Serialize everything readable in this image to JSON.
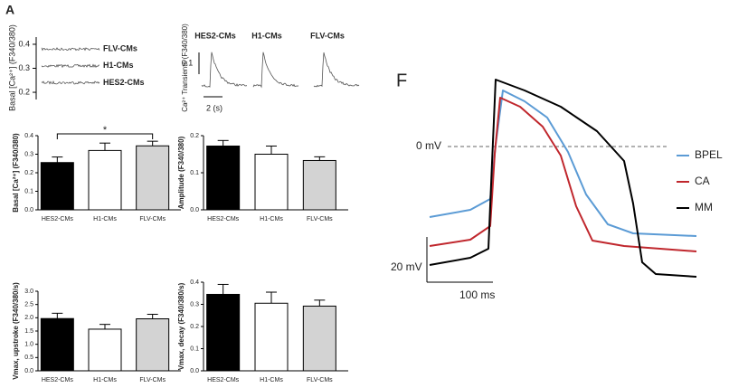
{
  "panel_a": {
    "label": "A",
    "basal_ylabel": "Basal [Ca²⁺] (F340/380)",
    "basal_ylim": [
      0.17,
      0.43
    ],
    "basal_yticks": [
      0.2,
      0.3,
      0.4
    ],
    "traces": [
      {
        "name": "FLV-CMs",
        "level": 0.38
      },
      {
        "name": "H1-CMs",
        "level": 0.31
      },
      {
        "name": "HES2-CMs",
        "level": 0.24
      }
    ],
    "transient_ylabel": "Ca²⁺ Transients (F340/380)",
    "transient_titles": [
      "HES2-CMs",
      "H1-CMs",
      "FLV-CMs"
    ],
    "scale_y": "0.1",
    "scale_x": "2 (s)"
  },
  "chart_data": [
    {
      "type": "bar",
      "ylabel": "Basal [Ca²⁺] (F340/380)",
      "categories": [
        "HES2-CMs",
        "H1-CMs",
        "FLV-CMs"
      ],
      "values": [
        0.255,
        0.32,
        0.345
      ],
      "errors": [
        0.03,
        0.04,
        0.025
      ],
      "colors": [
        "#000000",
        "#ffffff",
        "#d3d3d3"
      ],
      "ylim": [
        0,
        0.4
      ],
      "yticks": [
        {
          "value": 0,
          "label": "0.0"
        },
        0.1,
        0.2,
        0.3,
        0.4
      ],
      "annotation": "*"
    },
    {
      "type": "bar",
      "ylabel": "Amplitude (F340/380)",
      "categories": [
        "HES2-CMs",
        "H1-CMs",
        "FLV-CMs"
      ],
      "values": [
        0.172,
        0.15,
        0.133
      ],
      "errors": [
        0.015,
        0.022,
        0.01
      ],
      "colors": [
        "#000000",
        "#ffffff",
        "#d3d3d3"
      ],
      "ylim": [
        0,
        0.2
      ],
      "yticks": [
        {
          "value": 0,
          "label": "0.0"
        },
        0.1,
        0.2
      ]
    },
    {
      "type": "bar",
      "ylabel": "Vmax, upstroke (F340/380/s)",
      "categories": [
        "HES2-CMs",
        "H1-CMs",
        "FLV-CMs"
      ],
      "values": [
        1.97,
        1.57,
        1.96
      ],
      "errors": [
        0.2,
        0.18,
        0.17
      ],
      "colors": [
        "#000000",
        "#ffffff",
        "#d3d3d3"
      ],
      "ylim": [
        0,
        3
      ],
      "yticks": [
        {
          "value": 0,
          "label": "0.0"
        },
        0.5,
        {
          "value": 1,
          "label": "1.0"
        },
        1.5,
        {
          "value": 2,
          "label": "2.0"
        },
        2.5,
        {
          "value": 3,
          "label": "3.0"
        }
      ]
    },
    {
      "type": "bar",
      "ylabel": "Vmax, decay (F340/380/s)",
      "categories": [
        "HES2-CMs",
        "H1-CMs",
        "FLV-CMs"
      ],
      "values": [
        0.345,
        0.305,
        0.292
      ],
      "errors": [
        0.045,
        0.05,
        0.027
      ],
      "colors": [
        "#000000",
        "#ffffff",
        "#d3d3d3"
      ],
      "ylim": [
        0,
        0.4
      ],
      "yticks": [
        {
          "value": 0,
          "label": "0.0"
        },
        0.1,
        0.2,
        0.3,
        0.4
      ]
    }
  ],
  "panel_f": {
    "label": "F",
    "zero_label": "0 mV",
    "scale_y": "20 mV",
    "scale_x": "100 ms",
    "legend": [
      {
        "name": "BPEL",
        "color": "#5b9bd5"
      },
      {
        "name": "CA",
        "color": "#c0272d"
      },
      {
        "name": "MM",
        "color": "#000000"
      }
    ]
  }
}
